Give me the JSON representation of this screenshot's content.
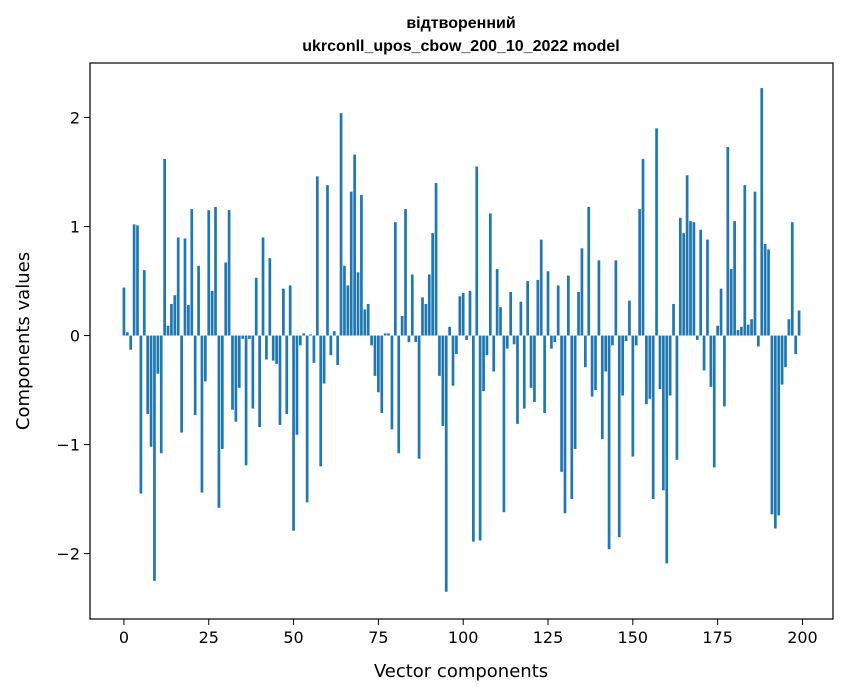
{
  "chart_data": {
    "type": "bar",
    "title_line1": "відтворенний",
    "title_line2": "ukrconll_upos_cbow_200_10_2022 model",
    "xlabel": "Vector components",
    "ylabel": "Components values",
    "xlim": [
      -10,
      209
    ],
    "ylim": [
      -2.6,
      2.5
    ],
    "xticks": [
      0,
      25,
      50,
      75,
      100,
      125,
      150,
      175,
      200
    ],
    "xtick_labels": [
      "0",
      "25",
      "50",
      "75",
      "100",
      "125",
      "150",
      "175",
      "200"
    ],
    "yticks": [
      -2,
      -1,
      0,
      1,
      2
    ],
    "ytick_labels": [
      "−2",
      "−1",
      "0",
      "1",
      "2"
    ],
    "bar_color": "#1f77b4",
    "values": [
      0.44,
      0.03,
      -0.13,
      1.02,
      1.01,
      -1.45,
      0.6,
      -0.72,
      -1.02,
      -2.25,
      -0.35,
      -1.08,
      1.62,
      0.09,
      0.29,
      0.37,
      0.9,
      -0.89,
      0.89,
      0.28,
      1.16,
      -0.73,
      0.64,
      -1.44,
      -0.42,
      1.15,
      0.41,
      1.18,
      -1.58,
      -1.04,
      0.67,
      1.15,
      -0.68,
      -0.79,
      -0.48,
      -0.03,
      -1.19,
      -0.03,
      -0.67,
      0.53,
      -0.84,
      0.9,
      -0.22,
      0.71,
      -0.23,
      -0.26,
      -0.82,
      0.43,
      -0.72,
      0.46,
      -1.79,
      -0.91,
      -0.09,
      0.02,
      -1.53,
      0.01,
      -0.25,
      1.46,
      -1.2,
      -0.44,
      1.38,
      -0.18,
      0.04,
      -0.27,
      2.04,
      0.64,
      0.46,
      1.32,
      1.66,
      0.58,
      1.29,
      0.24,
      0.29,
      -0.09,
      -0.37,
      -0.52,
      -0.71,
      0.02,
      0.02,
      -0.86,
      1.04,
      -1.08,
      0.18,
      1.16,
      -0.06,
      0.56,
      -0.06,
      -1.13,
      0.35,
      0.29,
      0.56,
      0.94,
      1.4,
      -0.37,
      -0.83,
      -2.35,
      0.08,
      -0.46,
      -0.17,
      0.36,
      0.39,
      -0.04,
      0.41,
      -1.89,
      1.55,
      -1.88,
      -0.51,
      -0.18,
      1.12,
      -0.33,
      0.61,
      0.26,
      -1.62,
      -0.12,
      0.4,
      -0.08,
      -0.81,
      0.31,
      -0.67,
      0.5,
      -0.48,
      -0.61,
      0.51,
      0.88,
      -0.71,
      0.59,
      -0.12,
      -0.06,
      0.46,
      -1.25,
      -1.63,
      0.55,
      -1.5,
      -1.04,
      0.4,
      0.8,
      -0.29,
      1.18,
      -0.56,
      -0.5,
      0.69,
      -0.95,
      -0.33,
      -1.96,
      -0.09,
      0.69,
      -1.85,
      -0.55,
      -0.05,
      0.32,
      -1.11,
      -0.09,
      1.16,
      1.62,
      -0.63,
      -0.58,
      -1.5,
      1.9,
      -0.49,
      -1.42,
      -2.09,
      -0.55,
      0.29,
      -1.14,
      1.08,
      0.94,
      1.47,
      1.05,
      1.04,
      -0.04,
      0.97,
      -0.32,
      0.88,
      -0.47,
      -1.21,
      0.09,
      0.43,
      -0.65,
      1.73,
      0.61,
      1.05,
      0.05,
      0.08,
      1.38,
      0.1,
      0.15,
      1.32,
      -0.1,
      2.27,
      0.84,
      0.79,
      -1.64,
      -1.77,
      -1.65,
      -0.45,
      -0.29,
      0.15,
      1.04,
      -0.17,
      0.23
    ]
  }
}
